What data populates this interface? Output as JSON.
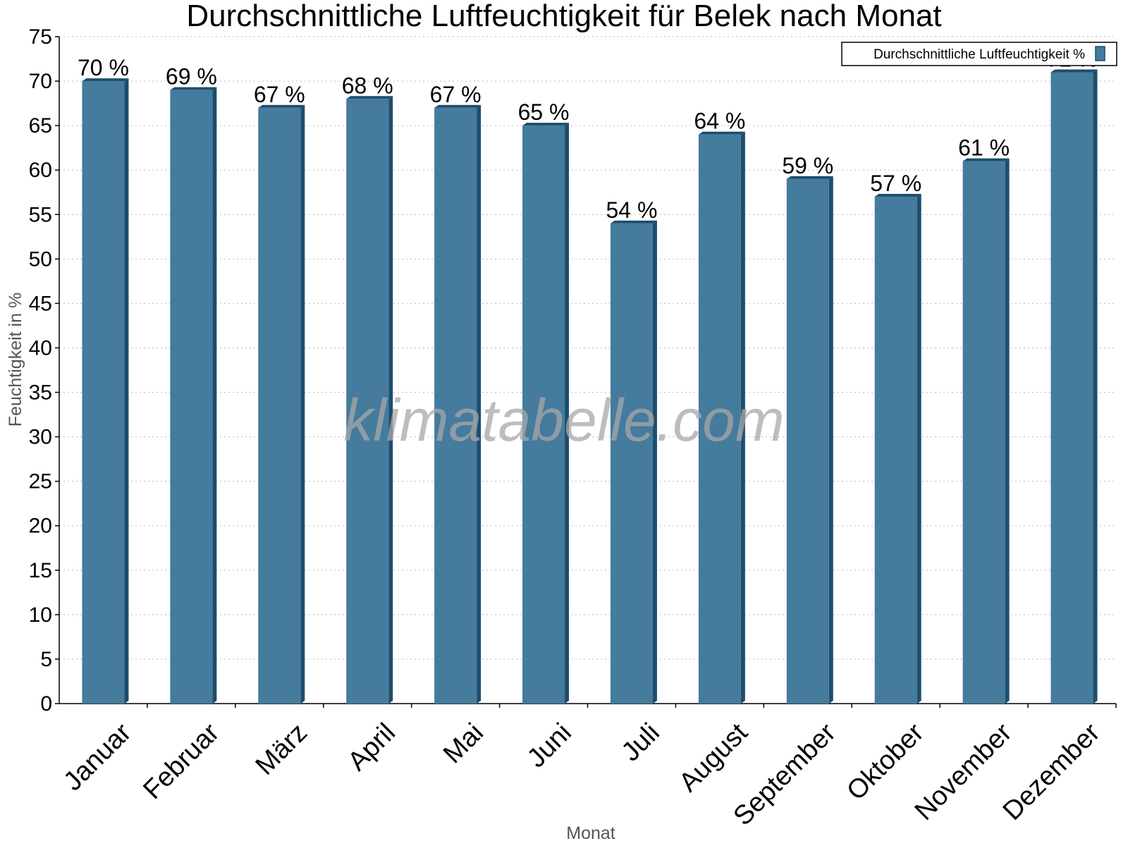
{
  "chart_data": {
    "type": "bar",
    "title": "Durchschnittliche Luftfeuchtigkeit für Belek nach Monat",
    "xlabel": "Monat",
    "ylabel": "Feuchtigkeit in %",
    "categories": [
      "Januar",
      "Februar",
      "März",
      "April",
      "Mai",
      "Juni",
      "Juli",
      "August",
      "September",
      "Oktober",
      "November",
      "Dezember"
    ],
    "series": [
      {
        "name": "Durchschnittliche Luftfeuchtigkeit %",
        "values": [
          70,
          69,
          67,
          68,
          67,
          65,
          54,
          64,
          59,
          57,
          61,
          71
        ],
        "labels": [
          "70 %",
          "69 %",
          "67 %",
          "68 %",
          "67 %",
          "65 %",
          "54 %",
          "64 %",
          "59 %",
          "57 %",
          "61 %",
          "71 %"
        ]
      }
    ],
    "ylim": [
      0,
      75
    ],
    "yticks": [
      0,
      5,
      10,
      15,
      20,
      25,
      30,
      35,
      40,
      45,
      50,
      55,
      60,
      65,
      70,
      75
    ],
    "grid": true,
    "legend_position": "top-right",
    "colors": {
      "bar": "#457b9d",
      "bar_edge": "#1d4e6e"
    },
    "watermark": "klimatabelle.com"
  }
}
